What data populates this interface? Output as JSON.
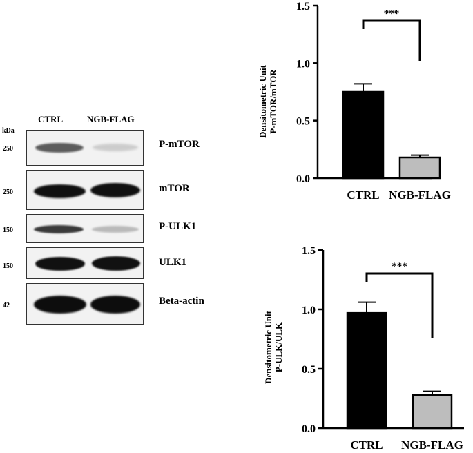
{
  "blot": {
    "kda_label": "kDa",
    "lanes": [
      "CTRL",
      "NGB-FLAG"
    ],
    "rows": [
      {
        "marker": "250",
        "protein": "P-mTOR",
        "ctrl_intensity": 0.55,
        "ngb_intensity": 0.12
      },
      {
        "marker": "250",
        "protein": "mTOR",
        "ctrl_intensity": 0.95,
        "ngb_intensity": 0.95
      },
      {
        "marker": "150",
        "protein": "P-ULK1",
        "ctrl_intensity": 0.8,
        "ngb_intensity": 0.25
      },
      {
        "marker": "150",
        "protein": "ULK1",
        "ctrl_intensity": 0.95,
        "ngb_intensity": 0.95
      },
      {
        "marker": "42",
        "protein": "Beta-actin",
        "ctrl_intensity": 0.95,
        "ngb_intensity": 0.95
      }
    ]
  },
  "chart_data": [
    {
      "type": "bar",
      "categories": [
        "CTRL",
        "NGB-FLAG"
      ],
      "values": [
        0.75,
        0.18
      ],
      "errors": [
        0.07,
        0.02
      ],
      "colors": [
        "#000000",
        "#bdbdbd"
      ],
      "ylabel": [
        "Densitometric Unit",
        "P-mTOR/mTOR"
      ],
      "ylim": [
        0,
        1.5
      ],
      "yticks": [
        "0.0",
        "0.5",
        "1.0",
        "1.5"
      ],
      "significance": "***"
    },
    {
      "type": "bar",
      "categories": [
        "CTRL",
        "NGB-FLAG"
      ],
      "values": [
        0.97,
        0.28
      ],
      "errors": [
        0.09,
        0.03
      ],
      "colors": [
        "#000000",
        "#bdbdbd"
      ],
      "ylabel": [
        "Densitometric Unit",
        "P-ULK/ULK"
      ],
      "ylim": [
        0,
        1.5
      ],
      "yticks": [
        "0.0",
        "0.5",
        "1.0",
        "1.5"
      ],
      "significance": "***"
    }
  ]
}
